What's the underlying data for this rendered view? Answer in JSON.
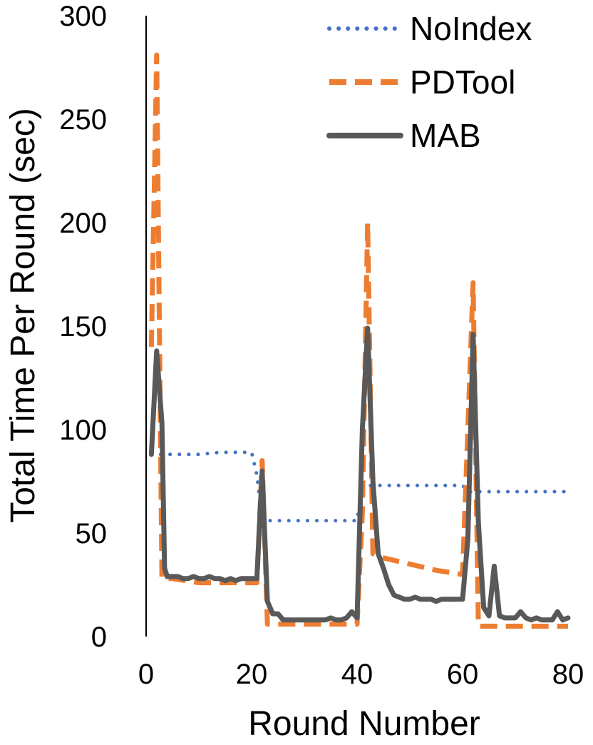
{
  "chart_data": {
    "type": "line",
    "title": "",
    "xlabel": "Round Number",
    "ylabel": "Total Time Per Round (sec)",
    "xlim": [
      0,
      80
    ],
    "ylim": [
      0,
      300
    ],
    "x_ticks": [
      0,
      20,
      40,
      60,
      80
    ],
    "y_ticks": [
      0,
      50,
      100,
      150,
      200,
      250,
      300
    ],
    "grid": false,
    "legend": "top-right",
    "series": [
      {
        "name": "NoIndex",
        "color": "#4472C4",
        "style": "dotted",
        "points": [
          [
            1,
            88
          ],
          [
            2,
            88
          ],
          [
            5,
            88
          ],
          [
            10,
            88
          ],
          [
            14,
            89
          ],
          [
            18,
            89
          ],
          [
            20,
            89
          ],
          [
            21,
            78
          ],
          [
            22,
            56
          ],
          [
            25,
            56
          ],
          [
            30,
            56
          ],
          [
            35,
            56
          ],
          [
            40,
            56
          ],
          [
            41,
            73
          ],
          [
            45,
            73
          ],
          [
            50,
            73
          ],
          [
            55,
            73
          ],
          [
            60,
            73
          ],
          [
            61,
            70
          ],
          [
            65,
            70
          ],
          [
            70,
            70
          ],
          [
            75,
            70
          ],
          [
            80,
            70
          ]
        ]
      },
      {
        "name": "PDTool",
        "color": "#ED7D31",
        "style": "dashed",
        "points": [
          [
            1,
            140
          ],
          [
            2,
            281
          ],
          [
            3,
            28
          ],
          [
            5,
            28
          ],
          [
            10,
            26
          ],
          [
            15,
            26
          ],
          [
            20,
            26
          ],
          [
            21,
            26
          ],
          [
            22,
            85
          ],
          [
            23,
            6
          ],
          [
            25,
            6
          ],
          [
            30,
            6
          ],
          [
            35,
            6
          ],
          [
            40,
            6
          ],
          [
            41,
            60
          ],
          [
            42,
            200
          ],
          [
            43,
            40
          ],
          [
            45,
            38
          ],
          [
            50,
            35
          ],
          [
            55,
            32
          ],
          [
            60,
            30
          ],
          [
            61,
            100
          ],
          [
            62,
            171
          ],
          [
            63,
            5
          ],
          [
            65,
            5
          ],
          [
            70,
            5
          ],
          [
            75,
            5
          ],
          [
            80,
            5
          ]
        ]
      },
      {
        "name": "MAB",
        "color": "#595959",
        "style": "solid",
        "points": [
          [
            1,
            88
          ],
          [
            2,
            138
          ],
          [
            3,
            103
          ],
          [
            3.5,
            33
          ],
          [
            4,
            29
          ],
          [
            6,
            29
          ],
          [
            7,
            28
          ],
          [
            8,
            28
          ],
          [
            9,
            29
          ],
          [
            10,
            28
          ],
          [
            11,
            28
          ],
          [
            12,
            29
          ],
          [
            13,
            28
          ],
          [
            14,
            28
          ],
          [
            15,
            27
          ],
          [
            16,
            28
          ],
          [
            17,
            27
          ],
          [
            18,
            28
          ],
          [
            19,
            28
          ],
          [
            20,
            28
          ],
          [
            21,
            28
          ],
          [
            22,
            80
          ],
          [
            23,
            17
          ],
          [
            24,
            11
          ],
          [
            25,
            11
          ],
          [
            26,
            8
          ],
          [
            28,
            8
          ],
          [
            30,
            8
          ],
          [
            32,
            8
          ],
          [
            34,
            8
          ],
          [
            35,
            9
          ],
          [
            36,
            8
          ],
          [
            37,
            8
          ],
          [
            38,
            9
          ],
          [
            39,
            12
          ],
          [
            40,
            9
          ],
          [
            41,
            100
          ],
          [
            42,
            149
          ],
          [
            43,
            75
          ],
          [
            44,
            40
          ],
          [
            45,
            33
          ],
          [
            46,
            25
          ],
          [
            47,
            20
          ],
          [
            48,
            19
          ],
          [
            49,
            18
          ],
          [
            50,
            18
          ],
          [
            51,
            19
          ],
          [
            52,
            18
          ],
          [
            53,
            18
          ],
          [
            54,
            18
          ],
          [
            55,
            17
          ],
          [
            56,
            18
          ],
          [
            57,
            18
          ],
          [
            58,
            18
          ],
          [
            59,
            18
          ],
          [
            60,
            18
          ],
          [
            61,
            47
          ],
          [
            62,
            146
          ],
          [
            63,
            55
          ],
          [
            64,
            14
          ],
          [
            65,
            10
          ],
          [
            66,
            34
          ],
          [
            67,
            10
          ],
          [
            68,
            9
          ],
          [
            69,
            9
          ],
          [
            70,
            9
          ],
          [
            71,
            12
          ],
          [
            72,
            9
          ],
          [
            73,
            8
          ],
          [
            74,
            9
          ],
          [
            75,
            8
          ],
          [
            76,
            8
          ],
          [
            77,
            8
          ],
          [
            78,
            12
          ],
          [
            79,
            8
          ],
          [
            80,
            9
          ]
        ]
      }
    ]
  }
}
